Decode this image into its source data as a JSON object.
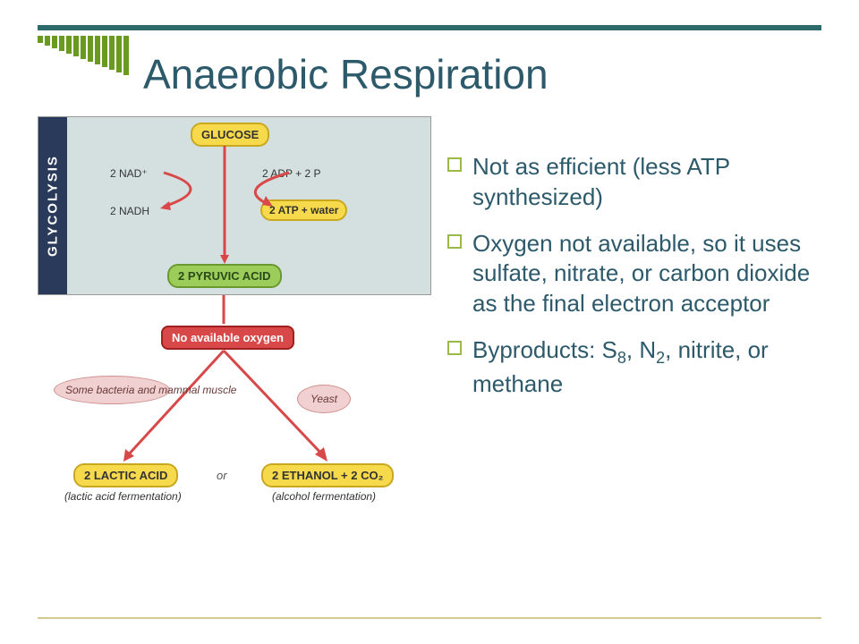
{
  "title": "Anaerobic Respiration",
  "corner": {
    "count": 13,
    "min_h": 8,
    "max_h": 44,
    "width": 6,
    "color": "#6a9a1f"
  },
  "top_bar_color": "#2d6b6b",
  "bottom_bar_color": "#d4c890",
  "bullets": [
    "Not as efficient (less ATP synthesized)",
    "Oxygen not available, so it uses sulfate, nitrate, or carbon dioxide as the final electron acceptor",
    "Byproducts: S₈, N₂, nitrite, or methane"
  ],
  "bullet_border_color": "#9bb94a",
  "text_color": "#2d5a6b",
  "diagram": {
    "glycolysis_label": "GLYCOLYSIS",
    "nodes": {
      "glucose": "GLUCOSE",
      "atp": "2 ATP + water",
      "pyruvic": "2 PYRUVIC ACID",
      "no_oxygen": "No available oxygen",
      "lactic": "2 LACTIC ACID",
      "ethanol": "2 ETHANOL + 2 CO₂"
    },
    "labels": {
      "nad": "2 NAD⁺",
      "nadh": "2 NADH",
      "adp": "2 ADP + 2 P",
      "bacteria": "Some bacteria and mammal muscle",
      "yeast": "Yeast",
      "or": "or",
      "lactic_cap": "(lactic acid fermentation)",
      "alcohol_cap": "(alcohol fermentation)"
    },
    "colors": {
      "box_bg": "#d4e0e0",
      "label_bg": "#2a3a5a",
      "yellow": "#f7d94c",
      "yellow_border": "#c9a820",
      "green": "#9ccc5a",
      "green_border": "#6a9a2f",
      "red": "#d94848",
      "red_border": "#a02020",
      "pink": "#f0d0d0",
      "pink_border": "#d09090"
    }
  }
}
